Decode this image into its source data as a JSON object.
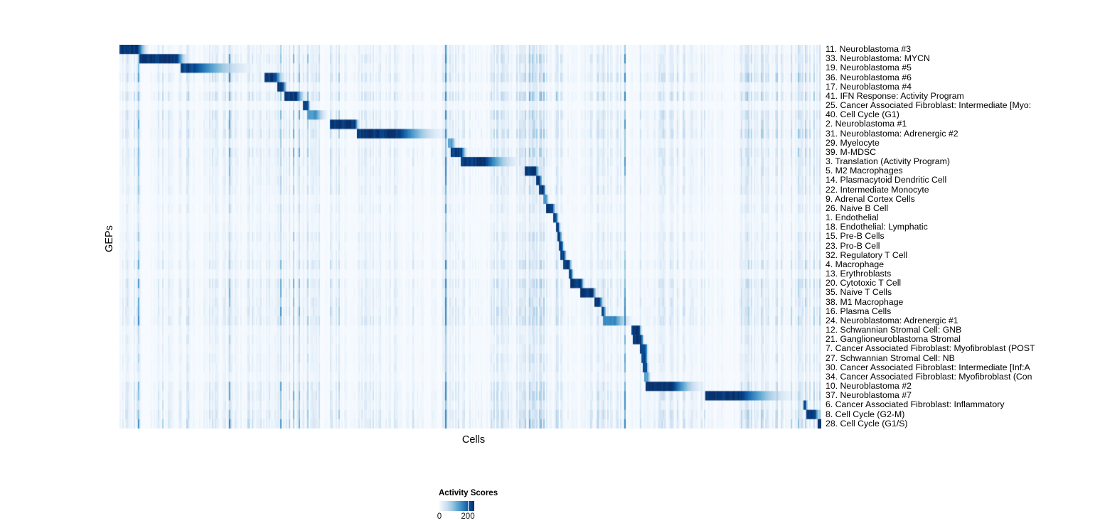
{
  "chart_data": {
    "type": "heatmap",
    "title": "",
    "xlabel": "Cells",
    "ylabel": "GEPs",
    "grid": false,
    "value_range": [
      0,
      245
    ],
    "colorbar": {
      "title": "Activity Scores",
      "position": "bottom-left",
      "ticks": [
        {
          "value": 0,
          "label": "0"
        },
        {
          "value": 200,
          "label": "200"
        }
      ]
    },
    "palette": [
      "#f7fbff",
      "#deebf7",
      "#c6dbef",
      "#9ecae1",
      "#6baed6",
      "#4292c6",
      "#2171b5",
      "#08519c",
      "#08306b"
    ],
    "rows": [
      {
        "label": "11. Neuroblastoma #3",
        "block": {
          "start": 0.0,
          "end": 0.026,
          "fade_end": 0.044,
          "peak": 245
        },
        "noise": 0.9
      },
      {
        "label": "33. Neuroblastoma: MYCN",
        "block": {
          "start": 0.028,
          "end": 0.082,
          "fade_end": 0.1,
          "peak": 245
        },
        "noise": 1.3
      },
      {
        "label": "19. Neuroblastoma #5",
        "block": {
          "start": 0.088,
          "end": 0.106,
          "fade_end": 0.205,
          "peak": 230
        },
        "noise": 1.0
      },
      {
        "label": "36. Neuroblastoma #6",
        "block": {
          "start": 0.206,
          "end": 0.222,
          "fade_end": 0.238,
          "peak": 240
        },
        "noise": 1.6
      },
      {
        "label": "17. Neuroblastoma #4",
        "block": {
          "start": 0.224,
          "end": 0.233,
          "fade_end": 0.241,
          "peak": 235
        },
        "noise": 0.7
      },
      {
        "label": "41. IFN Response: Activity Program",
        "block": {
          "start": 0.235,
          "end": 0.252,
          "fade_end": 0.268,
          "peak": 240
        },
        "noise": 1.6
      },
      {
        "label": "25. Cancer Associated Fibroblast: Intermediate [Myo:",
        "block": {
          "start": 0.262,
          "end": 0.268,
          "fade_end": 0.273,
          "peak": 235
        },
        "noise": 0.5
      },
      {
        "label": "40. Cell Cycle (G1)",
        "block": {
          "start": 0.268,
          "end": 0.28,
          "fade_end": 0.3,
          "peak": 150
        },
        "noise": 1.4
      },
      {
        "label": "2. Neuroblastoma #1",
        "block": {
          "start": 0.299,
          "end": 0.335,
          "fade_end": 0.344,
          "peak": 245
        },
        "noise": 1.2
      },
      {
        "label": "31. Neuroblastoma: Adrenergic #2",
        "block": {
          "start": 0.339,
          "end": 0.398,
          "fade_end": 0.473,
          "peak": 240
        },
        "noise": 1.5
      },
      {
        "label": "29. Myelocyte",
        "block": {
          "start": 0.467,
          "end": 0.474,
          "fade_end": 0.481,
          "peak": 140
        },
        "noise": 0.8
      },
      {
        "label": "39. M-MDSC",
        "block": {
          "start": 0.471,
          "end": 0.487,
          "fade_end": 0.497,
          "peak": 235
        },
        "noise": 1.3
      },
      {
        "label": "3. Translation (Activity Program)",
        "block": {
          "start": 0.486,
          "end": 0.52,
          "fade_end": 0.578,
          "peak": 240
        },
        "noise": 1.1
      },
      {
        "label": "5. M2 Macrophages",
        "block": {
          "start": 0.577,
          "end": 0.592,
          "fade_end": 0.601,
          "peak": 245
        },
        "noise": 1.0
      },
      {
        "label": "14. Plasmacytoid Dendritic Cell",
        "block": {
          "start": 0.594,
          "end": 0.599,
          "fade_end": 0.603,
          "peak": 230
        },
        "noise": 0.9
      },
      {
        "label": "22. Intermediate Monocyte",
        "block": {
          "start": 0.598,
          "end": 0.604,
          "fade_end": 0.608,
          "peak": 235
        },
        "noise": 1.0
      },
      {
        "label": "9. Adrenal Cortex Cells",
        "block": {
          "start": 0.604,
          "end": 0.608,
          "fade_end": 0.612,
          "peak": 150
        },
        "noise": 0.6
      },
      {
        "label": "26. Naive B Cell",
        "block": {
          "start": 0.607,
          "end": 0.617,
          "fade_end": 0.622,
          "peak": 240
        },
        "noise": 0.8
      },
      {
        "label": "1. Endothelial",
        "block": {
          "start": 0.617,
          "end": 0.622,
          "fade_end": 0.626,
          "peak": 230
        },
        "noise": 0.5
      },
      {
        "label": "18. Endothelial: Lymphatic",
        "block": {
          "start": 0.621,
          "end": 0.625,
          "fade_end": 0.629,
          "peak": 225
        },
        "noise": 0.6
      },
      {
        "label": "15. Pre-B Cells",
        "block": {
          "start": 0.623,
          "end": 0.627,
          "fade_end": 0.632,
          "peak": 230
        },
        "noise": 1.0
      },
      {
        "label": "23. Pro-B Cell",
        "block": {
          "start": 0.626,
          "end": 0.63,
          "fade_end": 0.634,
          "peak": 230
        },
        "noise": 0.7
      },
      {
        "label": "32. Regulatory T Cell",
        "block": {
          "start": 0.628,
          "end": 0.633,
          "fade_end": 0.638,
          "peak": 230
        },
        "noise": 0.8
      },
      {
        "label": "4. Macrophage",
        "block": {
          "start": 0.632,
          "end": 0.64,
          "fade_end": 0.646,
          "peak": 240
        },
        "noise": 1.2
      },
      {
        "label": "13. Erythroblasts",
        "block": {
          "start": 0.639,
          "end": 0.643,
          "fade_end": 0.648,
          "peak": 225
        },
        "noise": 0.6
      },
      {
        "label": "20. Cytotoxic T Cell",
        "block": {
          "start": 0.642,
          "end": 0.657,
          "fade_end": 0.664,
          "peak": 240
        },
        "noise": 1.3
      },
      {
        "label": "35. Naive T Cells",
        "block": {
          "start": 0.655,
          "end": 0.674,
          "fade_end": 0.681,
          "peak": 240
        },
        "noise": 1.1
      },
      {
        "label": "38. M1 Macrophage",
        "block": {
          "start": 0.677,
          "end": 0.684,
          "fade_end": 0.691,
          "peak": 240
        },
        "noise": 1.2
      },
      {
        "label": "16. Plasma Cells",
        "block": {
          "start": 0.686,
          "end": 0.69,
          "fade_end": 0.694,
          "peak": 220
        },
        "noise": 1.3
      },
      {
        "label": "24. Neuroblastoma: Adrenergic #1",
        "block": {
          "start": 0.689,
          "end": 0.706,
          "fade_end": 0.736,
          "peak": 160
        },
        "noise": 1.4
      },
      {
        "label": "12. Schwannian Stromal Cell: GNB",
        "block": {
          "start": 0.728,
          "end": 0.74,
          "fade_end": 0.745,
          "peak": 240
        },
        "noise": 0.7
      },
      {
        "label": "21. Ganglioneuroblastoma Stromal",
        "block": {
          "start": 0.731,
          "end": 0.743,
          "fade_end": 0.748,
          "peak": 245
        },
        "noise": 0.8
      },
      {
        "label": "7. Cancer Associated Fibroblast: Myofibroblast (POST",
        "block": {
          "start": 0.74,
          "end": 0.749,
          "fade_end": 0.754,
          "peak": 235
        },
        "noise": 0.7
      },
      {
        "label": "27. Schwannian Stromal Cell: NB",
        "block": {
          "start": 0.742,
          "end": 0.749,
          "fade_end": 0.754,
          "peak": 230
        },
        "noise": 0.9
      },
      {
        "label": "30. Cancer Associated Fibroblast: Intermediate [Inf:A",
        "block": {
          "start": 0.744,
          "end": 0.75,
          "fade_end": 0.755,
          "peak": 225
        },
        "noise": 0.8
      },
      {
        "label": "34. Cancer Associated Fibroblast: Myofibroblast (Con",
        "block": {
          "start": 0.746,
          "end": 0.752,
          "fade_end": 0.758,
          "peak": 140
        },
        "noise": 0.6
      },
      {
        "label": "10. Neuroblastoma #2",
        "block": {
          "start": 0.749,
          "end": 0.787,
          "fade_end": 0.838,
          "peak": 245
        },
        "noise": 1.2
      },
      {
        "label": "37. Neuroblastoma #7",
        "block": {
          "start": 0.833,
          "end": 0.884,
          "fade_end": 0.973,
          "peak": 245
        },
        "noise": 1.3
      },
      {
        "label": "6. Cancer Associated Fibroblast: Inflammatory",
        "block": {
          "start": 0.9735,
          "end": 0.977,
          "fade_end": 0.981,
          "peak": 230
        },
        "noise": 1.1
      },
      {
        "label": "8. Cell Cycle (G2-M)",
        "block": {
          "start": 0.977,
          "end": 0.99,
          "fade_end": 1.0,
          "peak": 245
        },
        "noise": 1.5
      },
      {
        "label": "28. Cell Cycle (G1/S)",
        "block": {
          "start": 0.993,
          "end": 1.0,
          "fade_end": 1.0,
          "peak": 245
        },
        "noise": 1.6
      }
    ],
    "noise_clusters": [
      [
        0.0,
        0.03,
        0.5
      ],
      [
        0.06,
        0.1,
        0.6
      ],
      [
        0.12,
        0.27,
        0.5
      ],
      [
        0.235,
        0.285,
        0.9
      ],
      [
        0.3,
        0.315,
        0.8
      ],
      [
        0.34,
        0.4,
        0.4
      ],
      [
        0.45,
        0.5,
        1.0
      ],
      [
        0.53,
        0.585,
        1.1
      ],
      [
        0.585,
        0.64,
        0.9
      ],
      [
        0.66,
        0.72,
        0.7
      ],
      [
        0.74,
        0.83,
        0.5
      ],
      [
        0.88,
        0.97,
        0.8
      ],
      [
        0.965,
        1.0,
        1.0
      ]
    ]
  }
}
